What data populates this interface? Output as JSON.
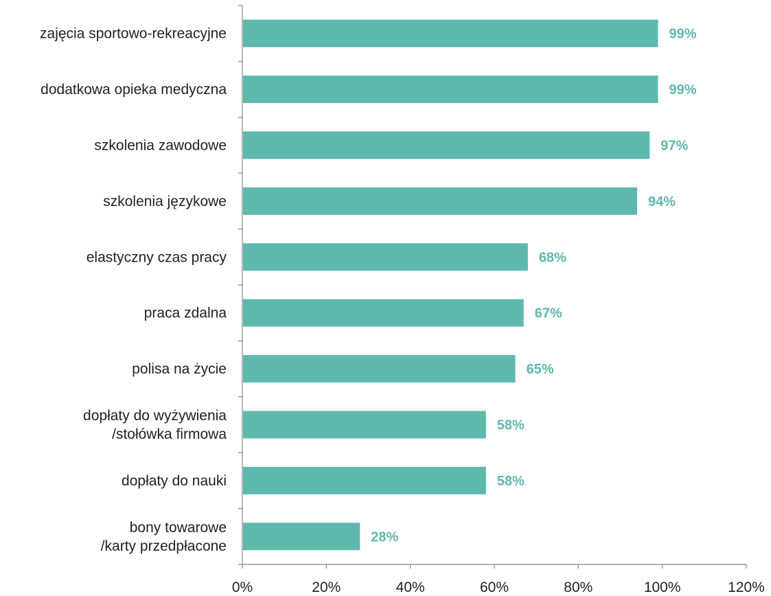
{
  "chart_data": {
    "type": "bar",
    "orientation": "horizontal",
    "categories": [
      [
        "zajęcia sportowo-rekreacyjne"
      ],
      [
        "dodatkowa opieka medyczna"
      ],
      [
        "szkolenia zawodowe"
      ],
      [
        "szkolenia językowe"
      ],
      [
        "elastyczny czas pracy"
      ],
      [
        "praca zdalna"
      ],
      [
        "polisa na życie"
      ],
      [
        "dopłaty do wyżywienia",
        "/stołówka firmowa"
      ],
      [
        "dopłaty do nauki"
      ],
      [
        "bony towarowe",
        "/karty przedpłacone"
      ]
    ],
    "values": [
      99,
      99,
      97,
      94,
      68,
      67,
      65,
      58,
      58,
      28
    ],
    "data_labels": [
      "99%",
      "99%",
      "97%",
      "94%",
      "68%",
      "67%",
      "65%",
      "58%",
      "58%",
      "28%"
    ],
    "x_ticks": [
      "0%",
      "20%",
      "40%",
      "60%",
      "80%",
      "100%",
      "120%"
    ],
    "xlim": [
      0,
      120
    ],
    "title": "",
    "xlabel": "",
    "ylabel": "",
    "grid": false,
    "legend": "none",
    "bar_color": "#5fb8ad",
    "label_color": "#5fb8ad",
    "axis_color": "#888888",
    "text_color": "#222222"
  }
}
